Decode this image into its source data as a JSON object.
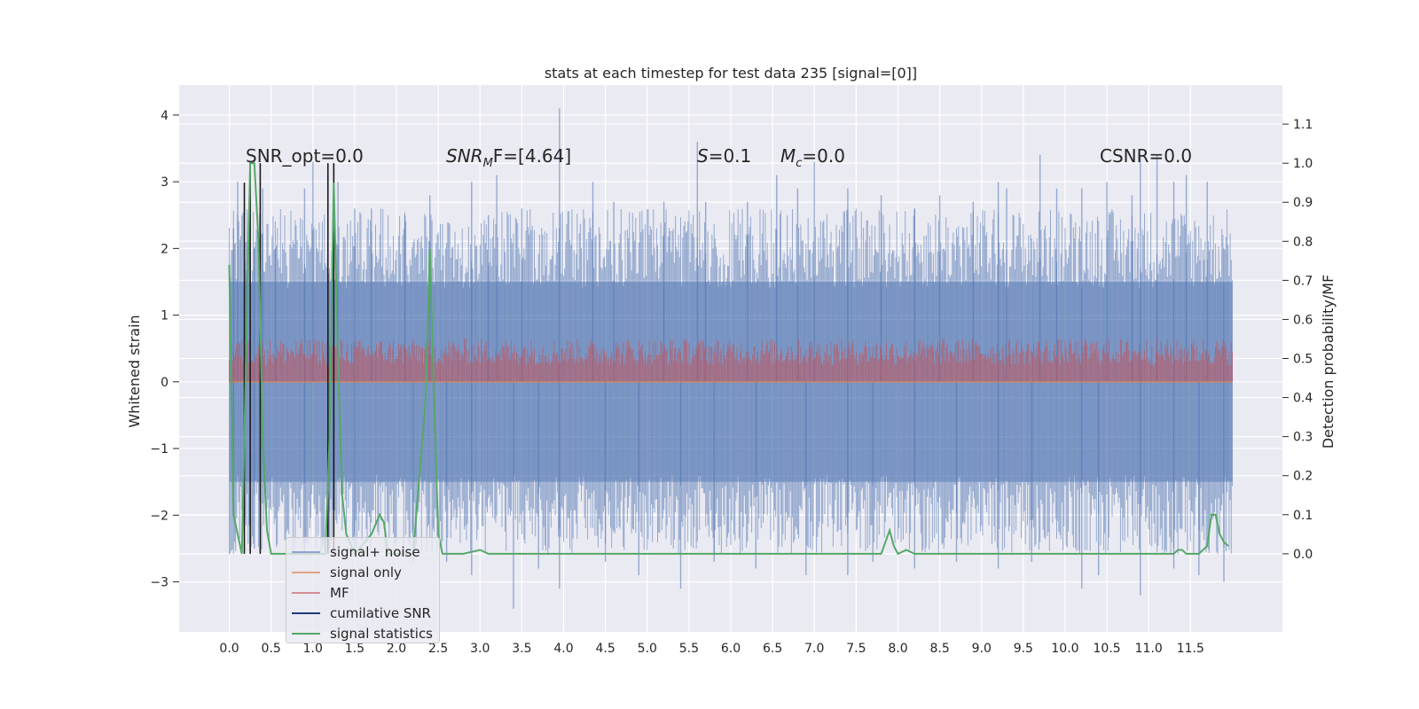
{
  "chart_data": {
    "type": "line",
    "title": "stats at each timestep for test data 235 [signal=[0]]",
    "xlabel": "",
    "ylabel": "Whitened strain",
    "ylabel_right": "Detection probability/MF",
    "xlim": [
      -0.6,
      12.6
    ],
    "ylim": [
      -3.75,
      4.45
    ],
    "ylim_right": [
      -0.2,
      1.2
    ],
    "x_ticks": [
      "0.0",
      "0.5",
      "1.0",
      "1.5",
      "2.0",
      "2.5",
      "3.0",
      "3.5",
      "4.0",
      "4.5",
      "5.0",
      "5.5",
      "6.0",
      "6.5",
      "7.0",
      "7.5",
      "8.0",
      "8.5",
      "9.0",
      "9.5",
      "10.0",
      "10.5",
      "11.0",
      "11.5"
    ],
    "y_ticks": [
      "−3",
      "−2",
      "−1",
      "0",
      "1",
      "2",
      "3",
      "4"
    ],
    "y_ticks_right": [
      "0.0",
      "0.1",
      "0.2",
      "0.3",
      "0.4",
      "0.5",
      "0.6",
      "0.7",
      "0.8",
      "0.9",
      "1.0",
      "1.1"
    ],
    "grid": true,
    "legend_position": "lower-left",
    "annotations": {
      "snr_opt": "SNR_opt=0.0",
      "snr_mf": "SNR",
      "snr_mf_sub": "M",
      "snr_mf_rest": "F=[4.64]",
      "s_var": "S",
      "s_val": "=0.1",
      "mc_var": "M",
      "mc_sub": "c",
      "mc_val": "=0.0",
      "csnr": "CSNR=0.0"
    },
    "series": [
      {
        "name": "signal+ noise",
        "color": "#4c72b0",
        "axis": "left",
        "noise_band": [
          -2.0,
          2.0
        ],
        "peaks": [
          [
            0.05,
            2.3
          ],
          [
            0.1,
            3.0
          ],
          [
            0.2,
            2.1
          ],
          [
            0.3,
            2.0
          ],
          [
            0.4,
            2.9
          ],
          [
            0.55,
            2.0
          ],
          [
            0.9,
            2.9
          ],
          [
            1.0,
            3.3
          ],
          [
            1.3,
            3.0
          ],
          [
            1.5,
            2.6
          ],
          [
            1.7,
            2.6
          ],
          [
            2.1,
            2.5
          ],
          [
            2.4,
            2.8
          ],
          [
            2.9,
            3.0
          ],
          [
            3.1,
            2.5
          ],
          [
            3.2,
            3.1
          ],
          [
            3.5,
            2.6
          ],
          [
            3.95,
            4.1
          ],
          [
            4.35,
            3.0
          ],
          [
            4.6,
            2.7
          ],
          [
            5.2,
            2.7
          ],
          [
            5.6,
            3.6
          ],
          [
            5.7,
            2.7
          ],
          [
            6.2,
            2.7
          ],
          [
            6.55,
            3.1
          ],
          [
            6.8,
            2.9
          ],
          [
            7.0,
            3.3
          ],
          [
            7.4,
            2.9
          ],
          [
            7.8,
            2.8
          ],
          [
            8.2,
            2.6
          ],
          [
            8.5,
            2.8
          ],
          [
            8.9,
            2.7
          ],
          [
            9.2,
            3.0
          ],
          [
            9.3,
            2.9
          ],
          [
            9.7,
            3.4
          ],
          [
            9.9,
            2.9
          ],
          [
            10.2,
            2.9
          ],
          [
            10.5,
            3.0
          ],
          [
            10.8,
            2.8
          ],
          [
            10.9,
            3.4
          ],
          [
            11.1,
            3.4
          ],
          [
            11.3,
            3.0
          ],
          [
            11.45,
            3.1
          ],
          [
            11.7,
            3.0
          ],
          [
            11.9,
            2.0
          ]
        ],
        "troughs": [
          [
            0.05,
            -2.0
          ],
          [
            0.3,
            -2.5
          ],
          [
            0.9,
            -2.6
          ],
          [
            1.2,
            -2.5
          ],
          [
            1.5,
            -2.5
          ],
          [
            2.2,
            -2.7
          ],
          [
            2.6,
            -2.7
          ],
          [
            2.9,
            -2.9
          ],
          [
            3.4,
            -3.4
          ],
          [
            3.7,
            -2.8
          ],
          [
            3.95,
            -3.1
          ],
          [
            4.5,
            -2.7
          ],
          [
            4.9,
            -2.9
          ],
          [
            5.4,
            -3.1
          ],
          [
            5.8,
            -2.7
          ],
          [
            6.3,
            -2.8
          ],
          [
            6.9,
            -2.9
          ],
          [
            7.4,
            -2.9
          ],
          [
            7.7,
            -2.7
          ],
          [
            8.2,
            -2.8
          ],
          [
            8.7,
            -2.7
          ],
          [
            9.2,
            -2.8
          ],
          [
            9.6,
            -2.7
          ],
          [
            10.2,
            -3.1
          ],
          [
            10.4,
            -2.9
          ],
          [
            10.9,
            -3.2
          ],
          [
            11.3,
            -2.8
          ],
          [
            11.6,
            -2.9
          ],
          [
            11.9,
            -3.0
          ]
        ]
      },
      {
        "name": "signal only",
        "color": "#dd8452",
        "axis": "left",
        "x": [
          0.0,
          12.0
        ],
        "y": [
          0.0,
          0.0
        ]
      },
      {
        "name": "MF",
        "color": "#c44e52",
        "axis": "left",
        "band": [
          0.0,
          0.65
        ]
      },
      {
        "name": "cumilative SNR",
        "color": "#1a1a1a",
        "axis": "right",
        "spikes": [
          [
            0.18,
            0.0,
            0.95
          ],
          [
            0.25,
            0.0,
            1.0
          ],
          [
            0.37,
            0.0,
            1.0
          ],
          [
            1.18,
            0.0,
            1.0
          ],
          [
            1.25,
            0.0,
            1.0
          ]
        ]
      },
      {
        "name": "signal statistics",
        "color": "#55a868",
        "axis": "right",
        "x": [
          0.0,
          0.05,
          0.1,
          0.15,
          0.2,
          0.25,
          0.3,
          0.35,
          0.4,
          0.45,
          0.5,
          0.6,
          0.8,
          1.0,
          1.1,
          1.15,
          1.2,
          1.25,
          1.3,
          1.35,
          1.4,
          1.5,
          1.7,
          1.8,
          1.85,
          1.9,
          2.0,
          2.2,
          2.35,
          2.4,
          2.45,
          2.5,
          2.55,
          2.6,
          2.7,
          2.8,
          3.0,
          3.1,
          3.5,
          4.0,
          5.0,
          6.0,
          7.0,
          7.5,
          7.8,
          7.9,
          7.95,
          8.0,
          8.1,
          8.2,
          8.5,
          9.0,
          9.5,
          10.0,
          10.5,
          11.0,
          11.3,
          11.35,
          11.4,
          11.45,
          11.5,
          11.6,
          11.7,
          11.75,
          11.8,
          11.85,
          11.9,
          11.95
        ],
        "y": [
          0.74,
          0.1,
          0.05,
          0.0,
          0.5,
          1.0,
          1.0,
          0.8,
          0.3,
          0.06,
          0.0,
          0.0,
          0.0,
          0.0,
          0.0,
          0.0,
          0.3,
          0.95,
          0.5,
          0.15,
          0.05,
          0.0,
          0.05,
          0.1,
          0.08,
          0.0,
          0.0,
          0.0,
          0.4,
          0.78,
          0.4,
          0.05,
          0.0,
          0.0,
          0.0,
          0.0,
          0.01,
          0.0,
          0.0,
          0.0,
          0.0,
          0.0,
          0.0,
          0.0,
          0.0,
          0.06,
          0.02,
          0.0,
          0.01,
          0.0,
          0.0,
          0.0,
          0.0,
          0.0,
          0.0,
          0.0,
          0.0,
          0.01,
          0.01,
          0.0,
          0.0,
          0.0,
          0.02,
          0.1,
          0.1,
          0.05,
          0.03,
          0.02
        ]
      }
    ]
  },
  "legend": {
    "items": [
      {
        "label": "signal+ noise",
        "color": "#4c72b0"
      },
      {
        "label": "signal only",
        "color": "#dd8452"
      },
      {
        "label": "MF",
        "color": "#c44e52"
      },
      {
        "label": "cumilative SNR",
        "color": "#1a1a1a"
      },
      {
        "label": "signal statistics",
        "color": "#55a868"
      }
    ]
  }
}
